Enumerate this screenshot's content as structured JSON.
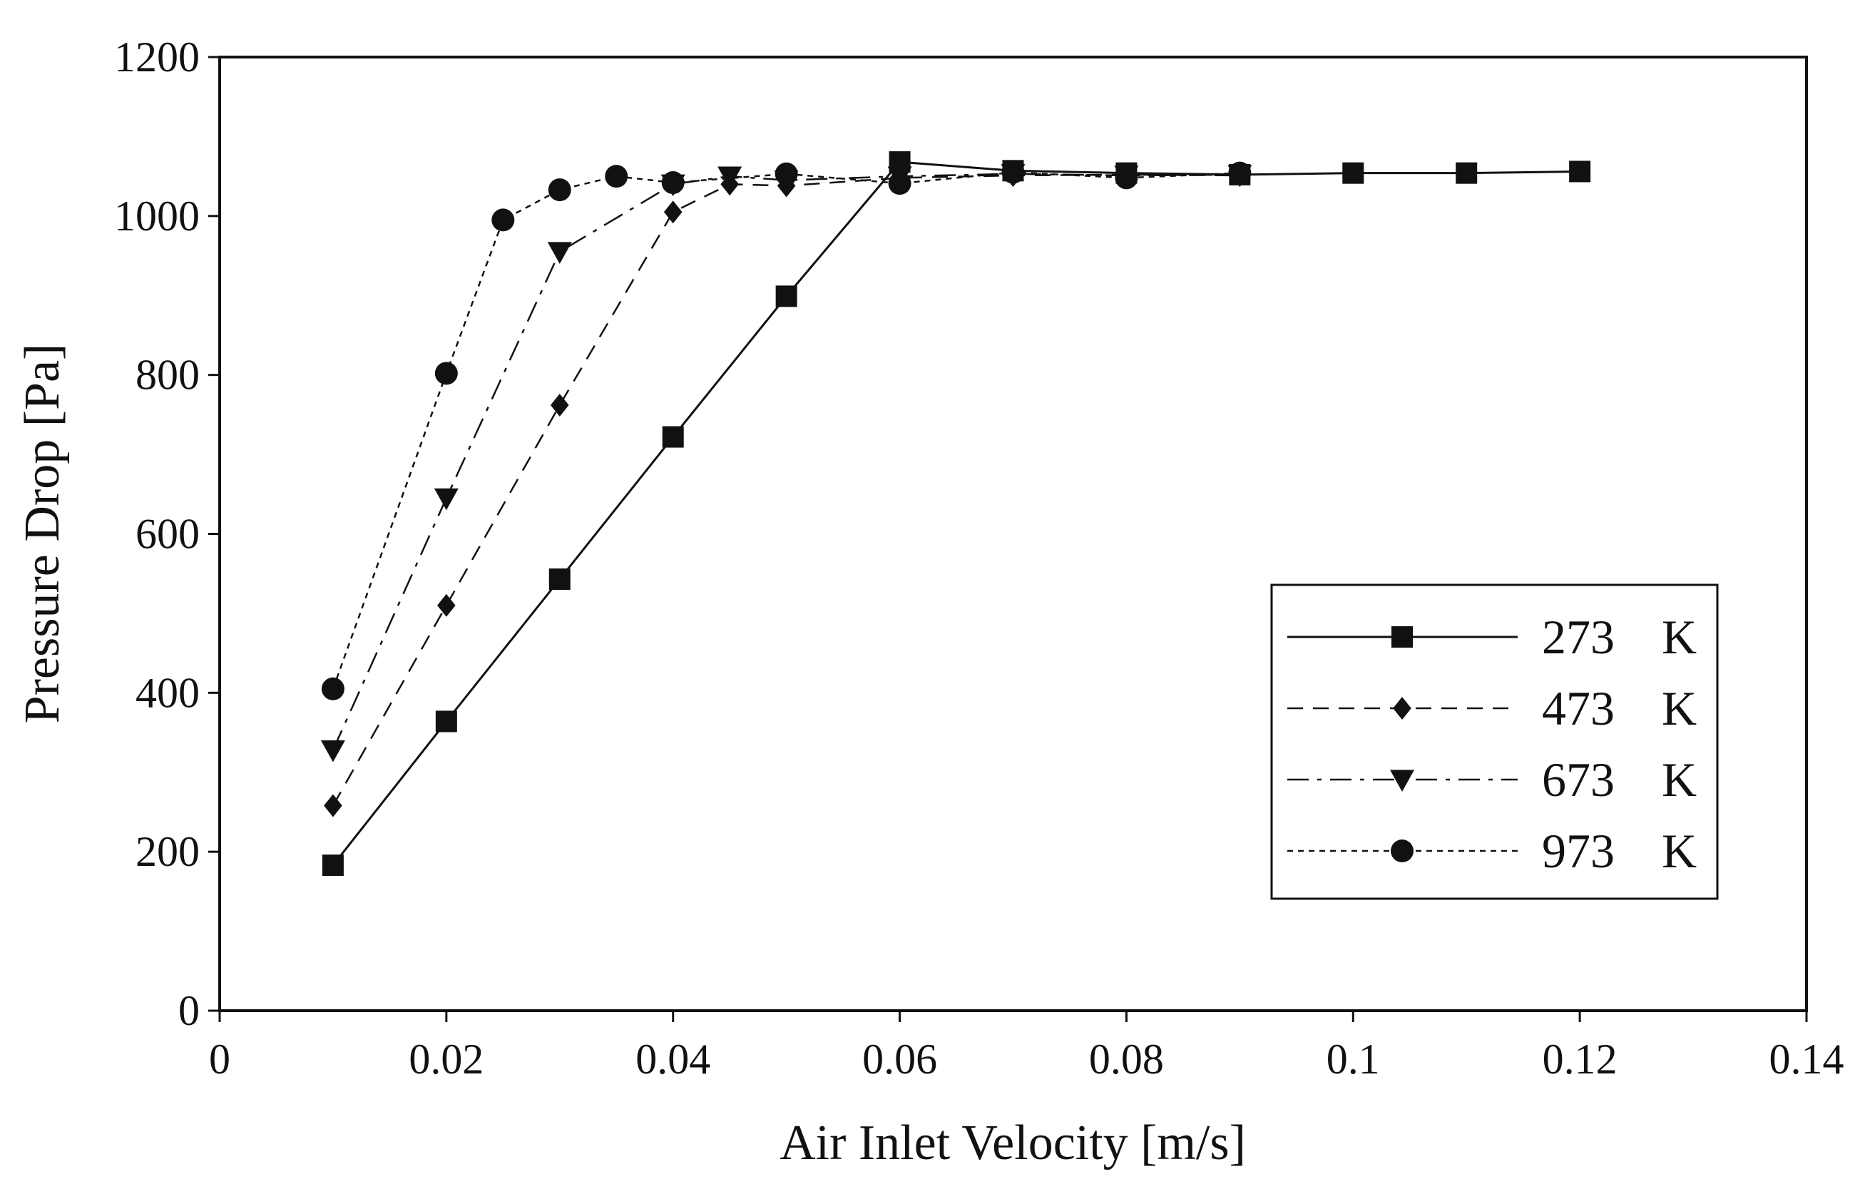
{
  "chart_data": {
    "type": "line",
    "title": "",
    "xlabel": "Air Inlet Velocity [m/s]",
    "ylabel": "Pressure Drop [Pa]",
    "xlim": [
      0,
      0.14
    ],
    "ylim": [
      0,
      1200
    ],
    "xticks": [
      0,
      0.02,
      0.04,
      0.06,
      0.08,
      0.1,
      0.12,
      0.14
    ],
    "xtick_labels": [
      "0",
      "0.02",
      "0.04",
      "0.06",
      "0.08",
      "0.1",
      "0.12",
      "0.14"
    ],
    "yticks": [
      0,
      200,
      400,
      600,
      800,
      1000,
      1200
    ],
    "ytick_labels": [
      "0",
      "200",
      "400",
      "600",
      "800",
      "1000",
      "1200"
    ],
    "grid": false,
    "legend_position": "right",
    "series": [
      {
        "name": "273 K",
        "temp": "273",
        "unit": "K",
        "marker": "square",
        "line": "solid",
        "x": [
          0.01,
          0.02,
          0.03,
          0.04,
          0.05,
          0.06,
          0.07,
          0.08,
          0.09,
          0.1,
          0.11,
          0.12
        ],
        "y": [
          183,
          364,
          543,
          722,
          899,
          1068,
          1057,
          1054,
          1052,
          1054,
          1054,
          1056
        ]
      },
      {
        "name": "473 K",
        "temp": "473",
        "unit": "K",
        "marker": "diamond",
        "line": "dashed",
        "x": [
          0.01,
          0.02,
          0.03,
          0.04,
          0.045,
          0.05,
          0.06,
          0.07,
          0.08,
          0.09
        ],
        "y": [
          258,
          510,
          762,
          1005,
          1040,
          1038,
          1048,
          1051,
          1052,
          1051
        ]
      },
      {
        "name": "673 K",
        "temp": "673",
        "unit": "K",
        "marker": "triangle-down",
        "line": "dashdot",
        "x": [
          0.01,
          0.02,
          0.03,
          0.04,
          0.045,
          0.05,
          0.06,
          0.07,
          0.08,
          0.09
        ],
        "y": [
          328,
          645,
          955,
          1040,
          1050,
          1045,
          1050,
          1053,
          1051,
          1052
        ]
      },
      {
        "name": "973 K",
        "temp": "973",
        "unit": "K",
        "marker": "circle",
        "line": "dotted",
        "x": [
          0.01,
          0.02,
          0.025,
          0.03,
          0.035,
          0.04,
          0.05,
          0.06,
          0.07,
          0.08,
          0.09
        ],
        "y": [
          405,
          802,
          995,
          1033,
          1050,
          1042,
          1053,
          1041,
          1055,
          1048,
          1054
        ]
      }
    ]
  }
}
